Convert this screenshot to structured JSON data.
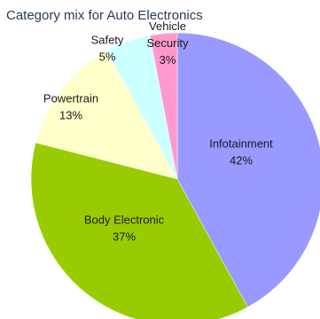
{
  "chart_data": {
    "type": "pie",
    "title": "Category mix for Auto Electronics",
    "slices": [
      {
        "name": "Infotainment",
        "label_lines": [
          "Infotainment"
        ],
        "value": 42,
        "value_label": "42%",
        "color": "#9999ff"
      },
      {
        "name": "Body Electronic",
        "label_lines": [
          "Body Electronic"
        ],
        "value": 37,
        "value_label": "37%",
        "color": "#99cc00"
      },
      {
        "name": "Powertrain",
        "label_lines": [
          "Powertrain"
        ],
        "value": 13,
        "value_label": "13%",
        "color": "#ffffcc"
      },
      {
        "name": "Safety",
        "label_lines": [
          "Safety"
        ],
        "value": 5,
        "value_label": "5%",
        "color": "#ccffff"
      },
      {
        "name": "Vehicle Security",
        "label_lines": [
          "Vehicle",
          "Security"
        ],
        "value": 3,
        "value_label": "3%",
        "color": "#ff99cc"
      }
    ],
    "legend": "none"
  }
}
